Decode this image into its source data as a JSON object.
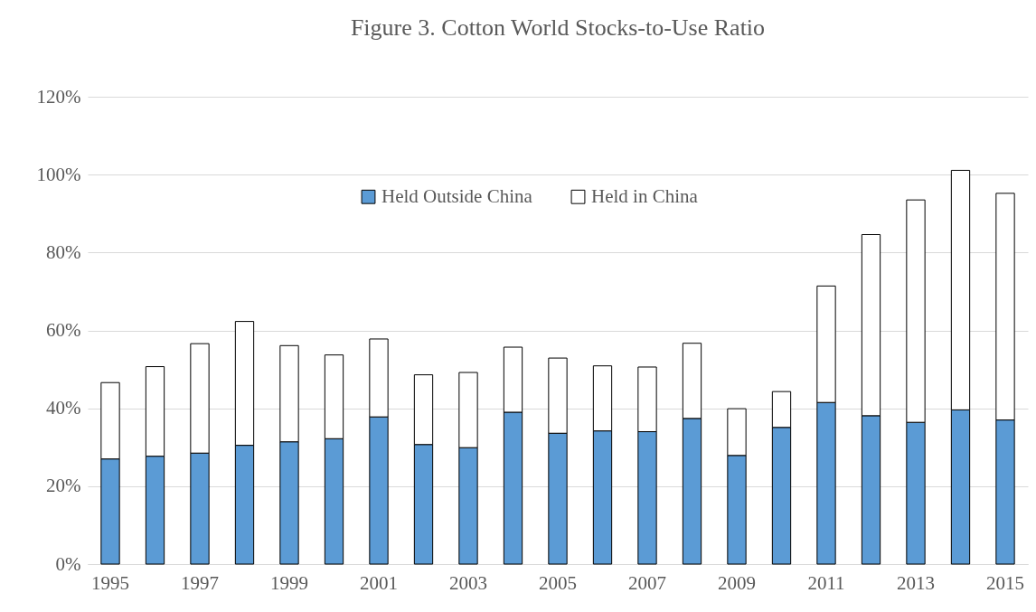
{
  "chart_data": {
    "type": "bar",
    "title": "Figure 3. Cotton World Stocks-to-Use Ratio",
    "categories": [
      "1995",
      null,
      "1997",
      null,
      "1999",
      null,
      "2001",
      null,
      "2003",
      null,
      "2005",
      null,
      "2007",
      null,
      "2009",
      null,
      "2011",
      null,
      "2013",
      null,
      "2015"
    ],
    "stacked": true,
    "series": [
      {
        "name": "Held Outside China",
        "color": "#5b9bd5",
        "values": [
          27.0,
          27.7,
          28.5,
          30.5,
          31.4,
          32.2,
          37.8,
          30.7,
          29.9,
          39.0,
          33.6,
          34.2,
          34.0,
          37.4,
          27.9,
          35.1,
          41.5,
          38.1,
          36.4,
          39.6,
          37.0
        ]
      },
      {
        "name": "Held in China",
        "color": "#ffffff",
        "values": [
          19.6,
          23.0,
          28.1,
          31.8,
          24.7,
          21.5,
          20.0,
          17.9,
          19.3,
          16.7,
          19.3,
          16.7,
          16.6,
          19.3,
          12.0,
          9.2,
          29.9,
          46.5,
          57.1,
          61.5,
          58.2
        ]
      }
    ],
    "ylim": [
      0,
      120
    ],
    "yticks": [
      {
        "value": 0,
        "label": "0%"
      },
      {
        "value": 20,
        "label": "20%"
      },
      {
        "value": 40,
        "label": "40%"
      },
      {
        "value": 60,
        "label": "60%"
      },
      {
        "value": 80,
        "label": "80%"
      },
      {
        "value": 100,
        "label": "100%"
      },
      {
        "value": 120,
        "label": "120%"
      }
    ],
    "grid": "y",
    "legend": "top"
  }
}
